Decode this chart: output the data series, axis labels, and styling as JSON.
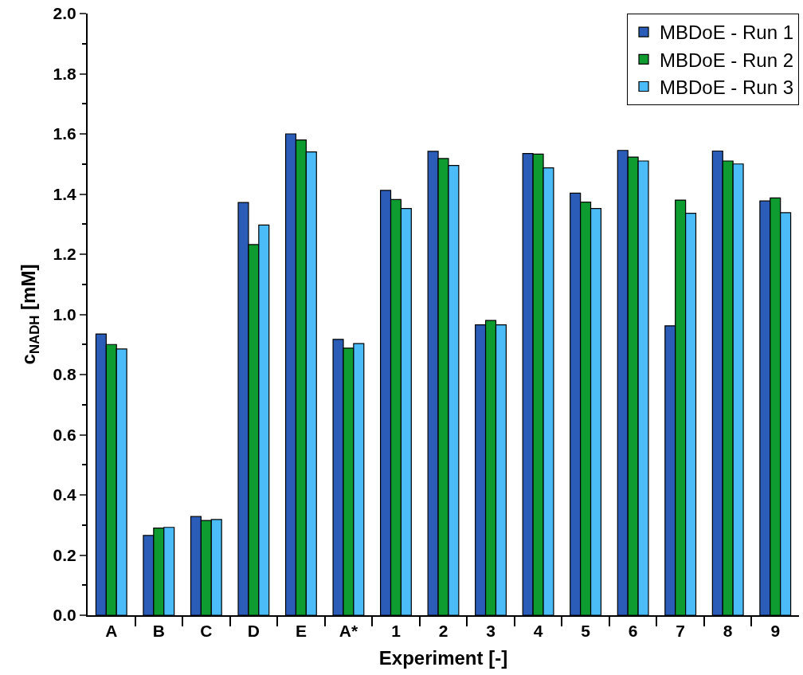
{
  "chart_data": {
    "type": "bar",
    "xlabel": "Experiment [-]",
    "ylabel": "c$_{NADH}$ [mM]",
    "categories": [
      "A",
      "B",
      "C",
      "D",
      "E",
      "A*",
      "1",
      "2",
      "3",
      "4",
      "5",
      "6",
      "7",
      "8",
      "9"
    ],
    "series": [
      {
        "name": "MBDoE - Run 1",
        "color": "#2a5cb8",
        "values": [
          0.935,
          0.265,
          0.328,
          1.372,
          1.6,
          0.917,
          1.412,
          1.542,
          0.965,
          1.535,
          1.403,
          1.545,
          0.962,
          1.543,
          1.377
        ]
      },
      {
        "name": "MBDoE - Run 2",
        "color": "#0e9b30",
        "values": [
          0.9,
          0.29,
          0.315,
          1.232,
          1.58,
          0.888,
          1.382,
          1.518,
          0.98,
          1.533,
          1.373,
          1.523,
          1.38,
          1.51,
          1.387
        ]
      },
      {
        "name": "MBDoE - Run 3",
        "color": "#4cbcf8",
        "values": [
          0.885,
          0.292,
          0.318,
          1.297,
          1.54,
          0.903,
          1.352,
          1.495,
          0.965,
          1.487,
          1.352,
          1.51,
          1.336,
          1.5,
          1.338
        ]
      }
    ],
    "ylim": [
      0,
      2.0
    ],
    "yticks": [
      {
        "value": 0,
        "label": "0.0"
      },
      0.2,
      0.4,
      0.6,
      0.8,
      {
        "value": 1,
        "label": "1.0"
      },
      1.2,
      1.4,
      1.6,
      1.8,
      {
        "value": 2,
        "label": "2.0"
      }
    ],
    "legend": "top right"
  }
}
